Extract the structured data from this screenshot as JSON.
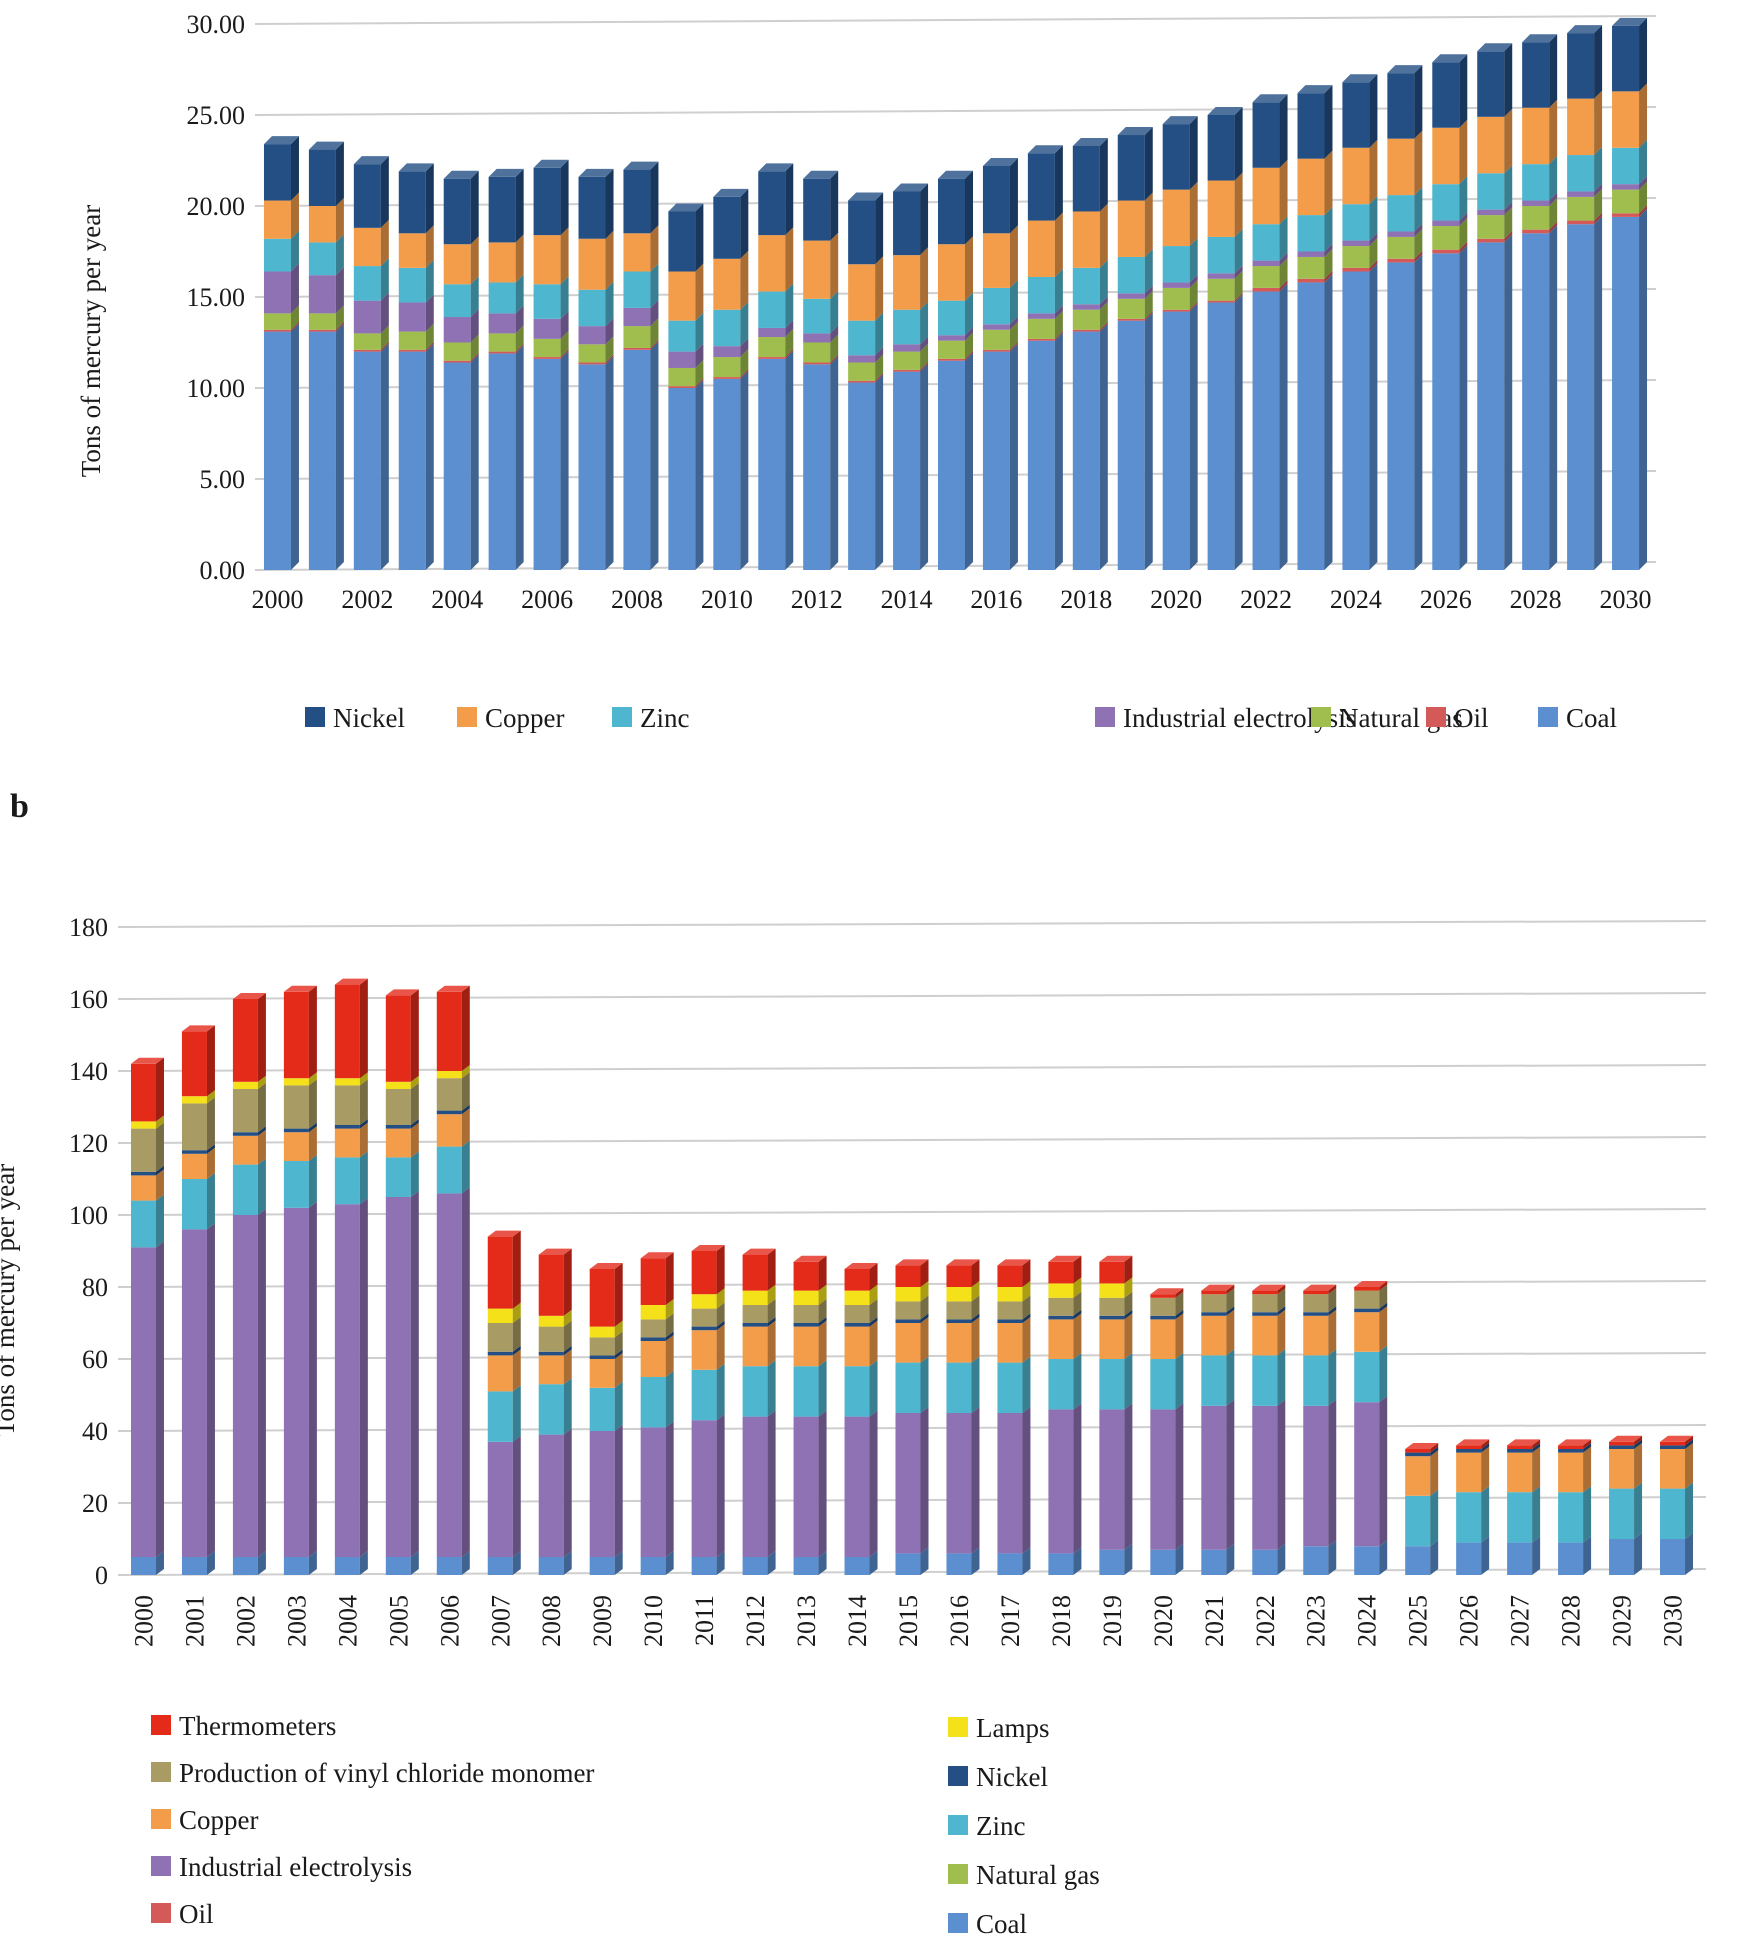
{
  "panel_b_label": "b",
  "colors": {
    "Coal": "#5b8fcf",
    "Oil": "#d45a5a",
    "Natural gas": "#9fbe4d",
    "Industrial electrolysis": "#8e72b4",
    "Zinc": "#4fb6cf",
    "Copper": "#f39d4a",
    "Nickel": "#234f84",
    "Production of vinyl chloride monomer": "#a89b63",
    "Lamps": "#f4e11a",
    "Thermometers": "#e42b1a"
  },
  "chart_data": [
    {
      "type": "bar",
      "stacked": true,
      "ylabel": "Tons of mercury per year",
      "xlabel": "",
      "ylim": [
        0,
        30
      ],
      "yticks": [
        "0.00",
        "5.00",
        "10.00",
        "15.00",
        "20.00",
        "25.00",
        "30.00"
      ],
      "xtick_labels": [
        "2000",
        "2002",
        "2004",
        "2006",
        "2008",
        "2010",
        "2012",
        "2014",
        "2016",
        "2018",
        "2020",
        "2022",
        "2024",
        "2026",
        "2028",
        "2030"
      ],
      "categories": [
        "2000",
        "2001",
        "2002",
        "2003",
        "2004",
        "2005",
        "2006",
        "2007",
        "2008",
        "2009",
        "2010",
        "2011",
        "2012",
        "2013",
        "2014",
        "2015",
        "2016",
        "2017",
        "2018",
        "2019",
        "2020",
        "2021",
        "2022",
        "2023",
        "2024",
        "2025",
        "2026",
        "2027",
        "2028",
        "2029",
        "2030"
      ],
      "legend": [
        "Nickel",
        "Copper",
        "Zinc",
        "Industrial electrolysis",
        "Natural gas",
        "Oil",
        "Coal"
      ],
      "series": [
        {
          "name": "Coal",
          "values": [
            13.1,
            13.1,
            12.0,
            12.0,
            11.4,
            11.9,
            11.6,
            11.3,
            12.1,
            10.0,
            10.5,
            11.6,
            11.3,
            10.3,
            10.9,
            11.5,
            12.0,
            12.6,
            13.1,
            13.7,
            14.2,
            14.7,
            15.3,
            15.8,
            16.4,
            16.9,
            17.4,
            18.0,
            18.5,
            19.0,
            19.4
          ]
        },
        {
          "name": "Oil",
          "values": [
            0.1,
            0.1,
            0.1,
            0.1,
            0.1,
            0.1,
            0.1,
            0.1,
            0.1,
            0.1,
            0.1,
            0.1,
            0.1,
            0.1,
            0.1,
            0.1,
            0.1,
            0.1,
            0.1,
            0.1,
            0.1,
            0.1,
            0.2,
            0.2,
            0.2,
            0.2,
            0.2,
            0.2,
            0.2,
            0.2,
            0.2
          ]
        },
        {
          "name": "Natural gas",
          "values": [
            0.9,
            0.9,
            0.9,
            1.0,
            1.0,
            1.0,
            1.0,
            1.0,
            1.2,
            1.0,
            1.1,
            1.1,
            1.1,
            1.0,
            1.0,
            1.0,
            1.1,
            1.1,
            1.1,
            1.1,
            1.2,
            1.2,
            1.2,
            1.2,
            1.2,
            1.2,
            1.3,
            1.3,
            1.3,
            1.3,
            1.3
          ]
        },
        {
          "name": "Industrial electrolysis",
          "values": [
            2.3,
            2.1,
            1.8,
            1.6,
            1.4,
            1.1,
            1.1,
            1.0,
            1.0,
            0.9,
            0.6,
            0.5,
            0.5,
            0.4,
            0.4,
            0.3,
            0.3,
            0.3,
            0.3,
            0.3,
            0.3,
            0.3,
            0.3,
            0.3,
            0.3,
            0.3,
            0.3,
            0.3,
            0.3,
            0.3,
            0.3
          ]
        },
        {
          "name": "Zinc",
          "values": [
            1.8,
            1.8,
            1.9,
            1.9,
            1.8,
            1.7,
            1.9,
            2.0,
            2.0,
            1.7,
            2.0,
            2.0,
            1.9,
            1.9,
            1.9,
            1.9,
            2.0,
            2.0,
            2.0,
            2.0,
            2.0,
            2.0,
            2.0,
            2.0,
            2.0,
            2.0,
            2.0,
            2.0,
            2.0,
            2.0,
            2.0
          ]
        },
        {
          "name": "Copper",
          "values": [
            2.1,
            2.0,
            2.1,
            1.9,
            2.2,
            2.2,
            2.7,
            2.8,
            2.1,
            2.7,
            2.8,
            3.1,
            3.2,
            3.1,
            3.0,
            3.1,
            3.0,
            3.1,
            3.1,
            3.1,
            3.1,
            3.1,
            3.1,
            3.1,
            3.1,
            3.1,
            3.1,
            3.1,
            3.1,
            3.1,
            3.1
          ]
        },
        {
          "name": "Nickel",
          "values": [
            3.1,
            3.1,
            3.5,
            3.4,
            3.6,
            3.6,
            3.7,
            3.4,
            3.5,
            3.3,
            3.4,
            3.5,
            3.4,
            3.5,
            3.5,
            3.6,
            3.7,
            3.7,
            3.6,
            3.6,
            3.6,
            3.6,
            3.6,
            3.6,
            3.6,
            3.6,
            3.6,
            3.6,
            3.6,
            3.6,
            3.6
          ]
        }
      ]
    },
    {
      "type": "bar",
      "stacked": true,
      "ylabel": "Tons of mercury per year",
      "xlabel": "",
      "ylim": [
        0,
        180
      ],
      "yticks": [
        "0",
        "20",
        "40",
        "60",
        "80",
        "100",
        "120",
        "140",
        "160",
        "180"
      ],
      "categories": [
        "2000",
        "2001",
        "2002",
        "2003",
        "2004",
        "2005",
        "2006",
        "2007",
        "2008",
        "2009",
        "2010",
        "2011",
        "2012",
        "2013",
        "2014",
        "2015",
        "2016",
        "2017",
        "2018",
        "2019",
        "2020",
        "2021",
        "2022",
        "2023",
        "2024",
        "2025",
        "2026",
        "2027",
        "2028",
        "2029",
        "2030"
      ],
      "legend_left": [
        "Thermometers",
        "Production of vinyl chloride monomer",
        "Copper",
        "Industrial electrolysis",
        "Oil"
      ],
      "legend_right": [
        "Lamps",
        "Nickel",
        "Zinc",
        "Natural gas",
        "Coal"
      ],
      "series": [
        {
          "name": "Coal",
          "values": [
            5,
            5,
            5,
            5,
            5,
            5,
            5,
            5,
            5,
            5,
            5,
            5,
            5,
            5,
            5,
            6,
            6,
            6,
            6,
            7,
            7,
            7,
            7,
            8,
            8,
            8,
            9,
            9,
            9,
            10,
            10
          ]
        },
        {
          "name": "Oil",
          "values": [
            0,
            0,
            0,
            0,
            0,
            0,
            0,
            0,
            0,
            0,
            0,
            0,
            0,
            0,
            0,
            0,
            0,
            0,
            0,
            0,
            0,
            0,
            0,
            0,
            0,
            0,
            0,
            0,
            0,
            0,
            0
          ]
        },
        {
          "name": "Natural gas",
          "values": [
            0,
            0,
            0,
            0,
            0,
            0,
            0,
            0,
            0,
            0,
            0,
            0,
            0,
            0,
            0,
            0,
            0,
            0,
            0,
            0,
            0,
            0,
            0,
            0,
            0,
            0,
            0,
            0,
            0,
            0,
            0
          ]
        },
        {
          "name": "Industrial electrolysis",
          "values": [
            86,
            91,
            95,
            97,
            98,
            100,
            101,
            32,
            34,
            35,
            36,
            38,
            39,
            39,
            39,
            39,
            39,
            39,
            40,
            39,
            39,
            40,
            40,
            39,
            40,
            0,
            0,
            0,
            0,
            0,
            0
          ]
        },
        {
          "name": "Zinc",
          "values": [
            13,
            14,
            14,
            13,
            13,
            11,
            13,
            14,
            14,
            12,
            14,
            14,
            14,
            14,
            14,
            14,
            14,
            14,
            14,
            14,
            14,
            14,
            14,
            14,
            14,
            14,
            14,
            14,
            14,
            14,
            14
          ]
        },
        {
          "name": "Copper",
          "values": [
            7,
            7,
            8,
            8,
            8,
            8,
            9,
            10,
            8,
            8,
            10,
            11,
            11,
            11,
            11,
            11,
            11,
            11,
            11,
            11,
            11,
            11,
            11,
            11,
            11,
            11,
            11,
            11,
            11,
            11,
            11
          ]
        },
        {
          "name": "Nickel",
          "values": [
            1,
            1,
            1,
            1,
            1,
            1,
            1,
            1,
            1,
            1,
            1,
            1,
            1,
            1,
            1,
            1,
            1,
            1,
            1,
            1,
            1,
            1,
            1,
            1,
            1,
            1,
            1,
            1,
            1,
            1,
            1
          ]
        },
        {
          "name": "Production of vinyl chloride monomer",
          "values": [
            12,
            13,
            12,
            12,
            11,
            10,
            9,
            8,
            7,
            5,
            5,
            5,
            5,
            5,
            5,
            5,
            5,
            5,
            5,
            5,
            5,
            5,
            5,
            5,
            5,
            0,
            0,
            0,
            0,
            0,
            0
          ]
        },
        {
          "name": "Lamps",
          "values": [
            2,
            2,
            2,
            2,
            2,
            2,
            2,
            4,
            3,
            3,
            4,
            4,
            4,
            4,
            4,
            4,
            4,
            4,
            4,
            4,
            0,
            0,
            0,
            0,
            0,
            0,
            0,
            0,
            0,
            0,
            0
          ]
        },
        {
          "name": "Thermometers",
          "values": [
            16,
            18,
            23,
            24,
            26,
            24,
            22,
            20,
            17,
            16,
            13,
            12,
            10,
            8,
            6,
            6,
            6,
            6,
            6,
            6,
            1,
            1,
            1,
            1,
            1,
            1,
            1,
            1,
            1,
            1,
            1
          ]
        }
      ]
    }
  ]
}
